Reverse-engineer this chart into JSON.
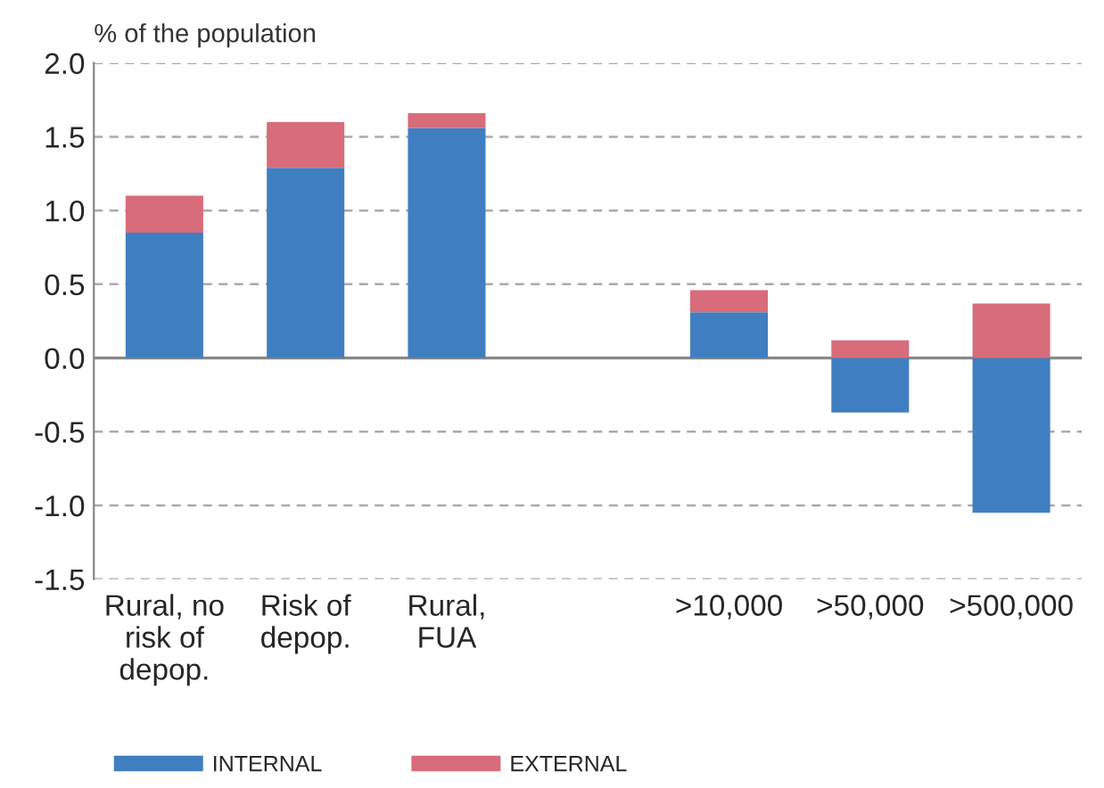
{
  "chart_data": {
    "type": "bar",
    "stacked": true,
    "ylabel": "% of the population",
    "categories": [
      "Rural, no\nrisk of\ndepop.",
      "Risk of\ndepop.",
      "Rural,\nFUA",
      null,
      ">10,000",
      ">50,000",
      ">500,000"
    ],
    "series": [
      {
        "name": "INTERNAL",
        "color": "#3f7fc1",
        "values": [
          0.85,
          1.29,
          1.56,
          null,
          0.31,
          -0.37,
          -1.05
        ]
      },
      {
        "name": "EXTERNAL",
        "color": "#d86c7a",
        "values": [
          0.25,
          0.31,
          0.1,
          null,
          0.15,
          0.12,
          0.37
        ]
      }
    ],
    "ylim": [
      -1.5,
      2.0
    ],
    "yticks": [
      {
        "value": -1.5,
        "label": "-1.5"
      },
      {
        "value": -1.0,
        "label": "-1.0"
      },
      {
        "value": -0.5,
        "label": "-0.5"
      },
      {
        "value": 0.0,
        "label": "0.0"
      },
      {
        "value": 0.5,
        "label": "0.5"
      },
      {
        "value": 1.0,
        "label": "1.0"
      },
      {
        "value": 1.5,
        "label": "1.5"
      },
      {
        "value": 2.0,
        "label": "2.0"
      }
    ],
    "grid": "y",
    "legend": "bottom"
  }
}
